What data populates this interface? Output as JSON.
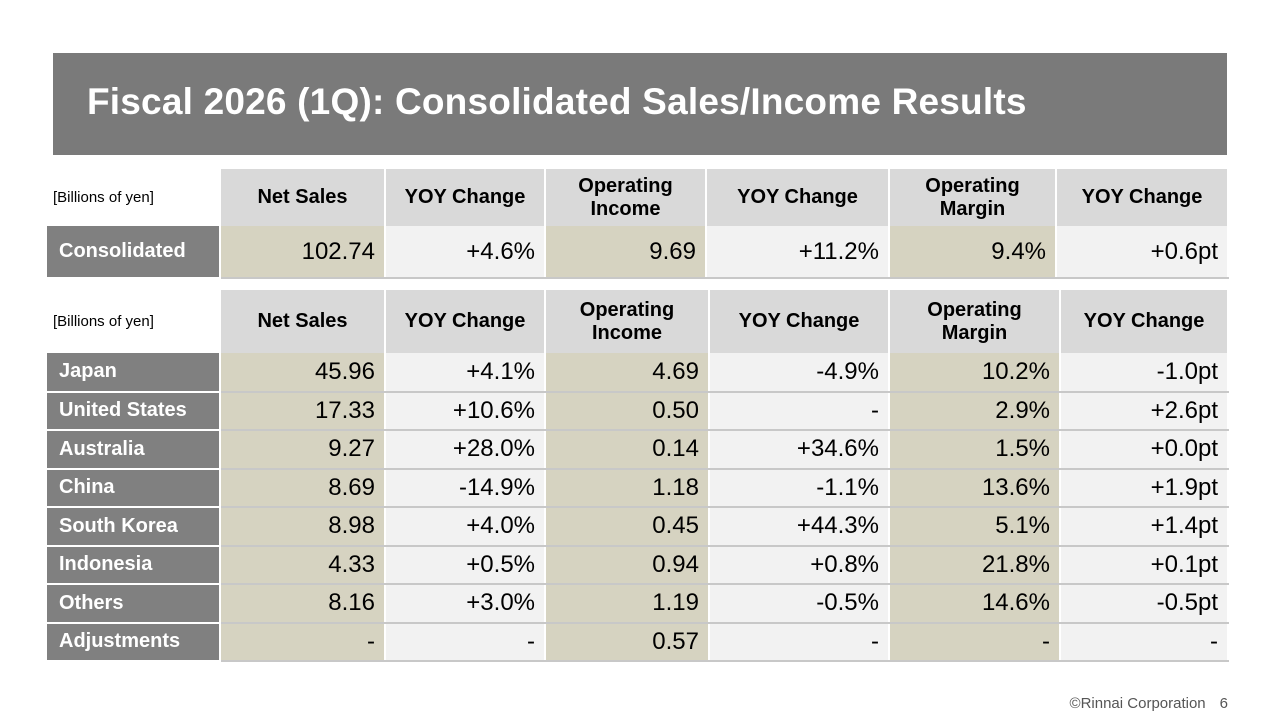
{
  "title": "Fiscal 2026 (1Q): Consolidated Sales/Income Results",
  "unit_label": "[Billions of yen]",
  "columns": [
    "Net Sales",
    "YOY Change",
    "Operating\nIncome",
    "YOY Change",
    "Operating\nMargin",
    "YOY Change"
  ],
  "consolidated": {
    "label": "Consolidated",
    "values": [
      "102.74",
      "+4.6%",
      "9.69",
      "+11.2%",
      "9.4%",
      "+0.6pt"
    ]
  },
  "regions": [
    {
      "label": "Japan",
      "values": [
        "45.96",
        "+4.1%",
        "4.69",
        "-4.9%",
        "10.2%",
        "-1.0pt"
      ]
    },
    {
      "label": "United States",
      "values": [
        "17.33",
        "+10.6%",
        "0.50",
        "-",
        "2.9%",
        "+2.6pt"
      ]
    },
    {
      "label": "Australia",
      "values": [
        "9.27",
        "+28.0%",
        "0.14",
        "+34.6%",
        "1.5%",
        "+0.0pt"
      ]
    },
    {
      "label": "China",
      "values": [
        "8.69",
        "-14.9%",
        "1.18",
        "-1.1%",
        "13.6%",
        "+1.9pt"
      ]
    },
    {
      "label": "South Korea",
      "values": [
        "8.98",
        "+4.0%",
        "0.45",
        "+44.3%",
        "5.1%",
        "+1.4pt"
      ]
    },
    {
      "label": "Indonesia",
      "values": [
        "4.33",
        "+0.5%",
        "0.94",
        "+0.8%",
        "21.8%",
        "+0.1pt"
      ]
    },
    {
      "label": "Others",
      "values": [
        "8.16",
        "+3.0%",
        "1.19",
        "-0.5%",
        "14.6%",
        "-0.5pt"
      ]
    },
    {
      "label": "Adjustments",
      "values": [
        "-",
        "-",
        "0.57",
        "-",
        "-",
        "-"
      ]
    }
  ],
  "footer": {
    "copyright": "©Rinnai Corporation",
    "page": "6"
  },
  "colors": {
    "title_bg": "#7a7a7a",
    "header_bg": "#d9d9d9",
    "label_bg": "#808080",
    "tan_cell": "#d6d3c1",
    "light_cell": "#f2f2f2"
  }
}
